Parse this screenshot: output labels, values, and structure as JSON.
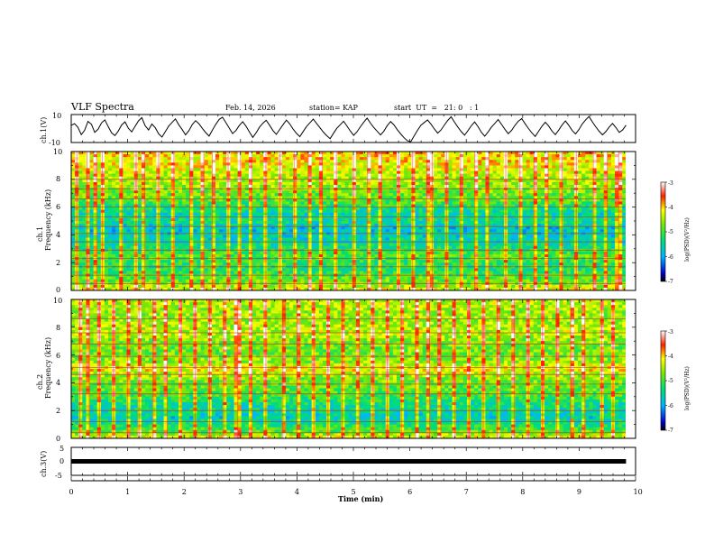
{
  "header": {
    "title": "VLF Spectra",
    "date": "Feb. 14, 2026",
    "station": "station= KAP",
    "start": "start  UT  =   21: 0   : 1"
  },
  "chart_data": [
    {
      "type": "line",
      "name": "ch1-waveform",
      "ylabel": "ch.1(V)",
      "ylim": [
        -10,
        10
      ],
      "yticks": [
        "10",
        "-10"
      ],
      "xlim": [
        0,
        10
      ],
      "x_end": 9.83,
      "trace": [
        2.2,
        3.5,
        0.8,
        -4.4,
        -1.2,
        5.1,
        3.0,
        -2.8,
        -0.5,
        4.0,
        6.2,
        1.4,
        -3.1,
        -5.0,
        -1.8,
        2.5,
        4.8,
        0.2,
        -2.4,
        1.6,
        5.5,
        7.8,
        2.0,
        -1.0,
        3.2,
        0.6,
        -3.8,
        -6.1,
        -2.2,
        1.8,
        4.4,
        6.9,
        2.7,
        -0.8,
        -4.5,
        -1.6,
        2.9,
        5.6,
        3.4,
        0.1,
        -2.9,
        -5.4,
        -1.1,
        3.0,
        6.5,
        8.1,
        4.2,
        0.3,
        -3.6,
        -1.4,
        2.2,
        4.9,
        1.7,
        -2.5,
        -6.3,
        -3.0,
        0.9,
        3.8,
        5.9,
        2.4,
        -1.5,
        -4.2,
        -0.7,
        2.8,
        6.0,
        3.3,
        -0.4,
        -3.5,
        -5.8,
        -2.1,
        1.5,
        4.1,
        6.8,
        3.6,
        0.5,
        -2.6,
        -5.1,
        -7.2,
        -3.4,
        0.2,
        2.7,
        5.2,
        1.9,
        -1.7,
        -4.9,
        -2.3,
        1.2,
        4.6,
        7.4,
        3.9,
        0.8,
        -2.0,
        -4.6,
        -1.9,
        2.1,
        5.0,
        2.6,
        -0.9,
        -3.9,
        -6.6,
        -8.8,
        -9.4,
        -5.2,
        -1.3,
        2.4,
        4.3,
        6.1,
        3.1,
        -0.3,
        -3.3,
        -1.0,
        2.6,
        5.8,
        8.4,
        4.5,
        1.0,
        -2.2,
        -4.8,
        -1.5,
        2.0,
        4.7,
        1.3,
        -2.7,
        -5.5,
        -2.4,
        1.1,
        3.7,
        6.4,
        2.9,
        -0.6,
        -3.7,
        -1.2,
        2.3,
        5.3,
        7.1,
        3.4,
        0.0,
        -3.0,
        -5.7,
        -2.0,
        1.6,
        4.5,
        1.8,
        -1.8,
        -4.3,
        -1.1,
        2.5,
        5.4,
        2.2,
        -1.4,
        -3.9,
        -0.8,
        3.3,
        6.2,
        8.6,
        4.8,
        1.3,
        -1.9,
        -4.5,
        -2.2,
        1.0,
        3.6,
        0.7,
        -2.8,
        -1.0,
        2.4
      ]
    },
    {
      "type": "heatmap",
      "name": "ch1-spectrogram",
      "ylabel": "ch.1\nFrequency (kHz)",
      "ylim": [
        0,
        10
      ],
      "yticks": [
        "0",
        "2",
        "4",
        "6",
        "8",
        "10"
      ],
      "xlim": [
        0,
        10
      ],
      "x_end": 9.83,
      "colorbar": {
        "label": "log(PSD)(V²/Hz)",
        "range": [
          -7,
          -3
        ],
        "ticks": [
          "-3",
          "-4",
          "-5",
          "-6",
          "-7"
        ]
      },
      "bands": [
        {
          "f": 0.0,
          "v": -4.2
        },
        {
          "f": 0.5,
          "v": -4.7
        },
        {
          "f": 1.0,
          "v": -5.0
        },
        {
          "f": 1.5,
          "v": -5.3
        },
        {
          "f": 2.0,
          "v": -5.2
        },
        {
          "f": 2.5,
          "v": -4.9
        },
        {
          "f": 3.0,
          "v": -5.3
        },
        {
          "f": 3.5,
          "v": -5.6
        },
        {
          "f": 4.0,
          "v": -5.7
        },
        {
          "f": 4.5,
          "v": -5.8
        },
        {
          "f": 5.0,
          "v": -5.4
        },
        {
          "f": 5.5,
          "v": -5.6
        },
        {
          "f": 6.0,
          "v": -5.3
        },
        {
          "f": 6.5,
          "v": -4.9
        },
        {
          "f": 7.0,
          "v": -4.8
        },
        {
          "f": 7.5,
          "v": -4.6
        },
        {
          "f": 8.0,
          "v": -4.5
        },
        {
          "f": 8.5,
          "v": -4.4
        },
        {
          "f": 9.0,
          "v": -4.2
        },
        {
          "f": 9.5,
          "v": -4.1
        },
        {
          "f": 10.0,
          "v": -4.0
        }
      ],
      "lines_khz": [
        0.5,
        1.1,
        1.7,
        2.3,
        2.9,
        3.5,
        4.1,
        4.6,
        5.3,
        6.0,
        6.6,
        7.3,
        8.0
      ],
      "sferics_min": [
        0.1,
        0.28,
        0.45,
        0.55,
        0.9,
        1.15,
        1.3,
        1.55,
        1.82,
        2.1,
        2.35,
        2.5,
        2.78,
        3.0,
        3.2,
        3.45,
        3.7,
        3.95,
        4.2,
        4.45,
        4.7,
        5.0,
        5.25,
        5.5,
        5.8,
        6.05,
        6.3,
        6.4,
        6.65,
        6.9,
        7.15,
        7.4,
        7.7,
        7.95,
        8.2,
        8.45,
        8.7,
        8.95,
        9.25,
        9.5,
        9.7
      ]
    },
    {
      "type": "heatmap",
      "name": "ch2-spectrogram",
      "ylabel": "ch.2\nFrequency (kHz)",
      "ylim": [
        0,
        10
      ],
      "yticks": [
        "0",
        "2",
        "4",
        "6",
        "8",
        "10"
      ],
      "xlim": [
        0,
        10
      ],
      "x_end": 9.83,
      "colorbar": {
        "label": "log(PSD)(V²/Hz)",
        "range": [
          -7,
          -3
        ],
        "ticks": [
          "-3",
          "-4",
          "-5",
          "-6",
          "-7"
        ]
      },
      "bands": [
        {
          "f": 0.0,
          "v": -4.2
        },
        {
          "f": 0.5,
          "v": -4.9
        },
        {
          "f": 1.0,
          "v": -5.3
        },
        {
          "f": 1.5,
          "v": -5.7
        },
        {
          "f": 2.0,
          "v": -5.5
        },
        {
          "f": 2.5,
          "v": -5.4
        },
        {
          "f": 3.0,
          "v": -5.1
        },
        {
          "f": 3.5,
          "v": -4.9
        },
        {
          "f": 4.0,
          "v": -4.8
        },
        {
          "f": 4.5,
          "v": -4.6
        },
        {
          "f": 5.0,
          "v": -4.1
        },
        {
          "f": 5.5,
          "v": -4.6
        },
        {
          "f": 6.0,
          "v": -4.8
        },
        {
          "f": 6.5,
          "v": -4.8
        },
        {
          "f": 7.0,
          "v": -4.7
        },
        {
          "f": 7.5,
          "v": -4.4
        },
        {
          "f": 8.0,
          "v": -4.5
        },
        {
          "f": 8.5,
          "v": -4.6
        },
        {
          "f": 9.0,
          "v": -4.6
        },
        {
          "f": 9.5,
          "v": -4.5
        },
        {
          "f": 10.0,
          "v": -4.4
        }
      ],
      "lines_khz": [
        0.4,
        1.2,
        2.0,
        3.2,
        3.9,
        4.6,
        5.1,
        5.9,
        6.8,
        7.6,
        8.6
      ],
      "sferics_min": [
        0.15,
        0.32,
        0.5,
        0.75,
        1.0,
        1.2,
        1.45,
        1.7,
        1.95,
        2.2,
        2.45,
        2.7,
        2.95,
        3.2,
        3.45,
        3.75,
        4.0,
        4.3,
        4.55,
        4.8,
        5.1,
        5.35,
        5.6,
        5.85,
        6.1,
        6.35,
        6.55,
        6.8,
        7.05,
        7.3,
        7.55,
        7.85,
        8.1,
        8.35,
        8.6,
        8.85,
        9.1,
        9.4,
        9.6
      ]
    },
    {
      "type": "line",
      "name": "ch3-waveform",
      "ylabel": "ch.3(V)",
      "ylim": [
        -5,
        5
      ],
      "yticks": [
        "5",
        "0",
        "-5"
      ],
      "xlim": [
        0,
        10
      ],
      "x_end": 9.83,
      "level": 0,
      "xlabel": "Time  (min)",
      "xticks": [
        "0",
        "1",
        "2",
        "3",
        "4",
        "5",
        "6",
        "7",
        "8",
        "9",
        "10"
      ]
    }
  ]
}
